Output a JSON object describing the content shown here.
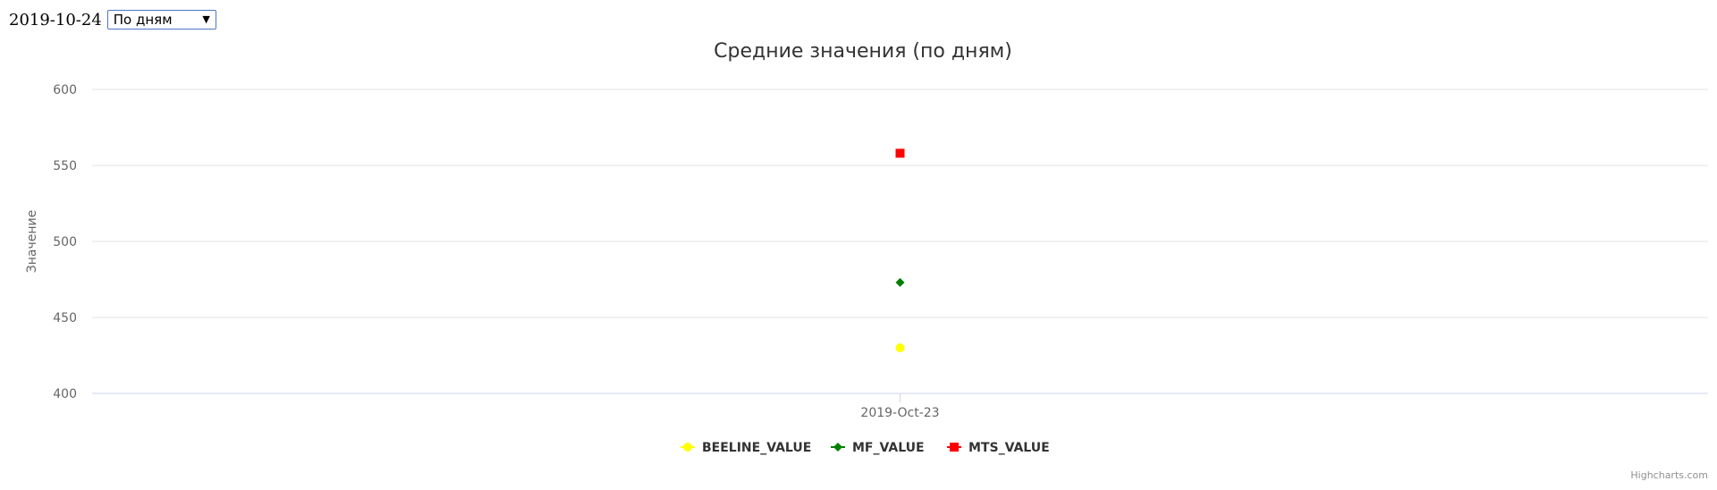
{
  "controls": {
    "date": "2019-10-24",
    "period_selected": "По дням"
  },
  "credits": "Highcharts.com",
  "chart_data": {
    "type": "scatter",
    "title": "Средние значения (по дням)",
    "ylabel": "Значение",
    "xlabel": "",
    "ylim": [
      400,
      600
    ],
    "yticks": [
      400,
      450,
      500,
      550,
      600
    ],
    "categories": [
      "2019-Oct-23"
    ],
    "grid": true,
    "legend_position": "bottom-center",
    "series": [
      {
        "name": "BEELINE_VALUE",
        "values": [
          430
        ],
        "color": "#ffff00",
        "marker": "circle"
      },
      {
        "name": "MF_VALUE",
        "values": [
          473
        ],
        "color": "#008000",
        "marker": "diamond"
      },
      {
        "name": "MTS_VALUE",
        "values": [
          558
        ],
        "color": "#ff0000",
        "marker": "square"
      }
    ]
  }
}
